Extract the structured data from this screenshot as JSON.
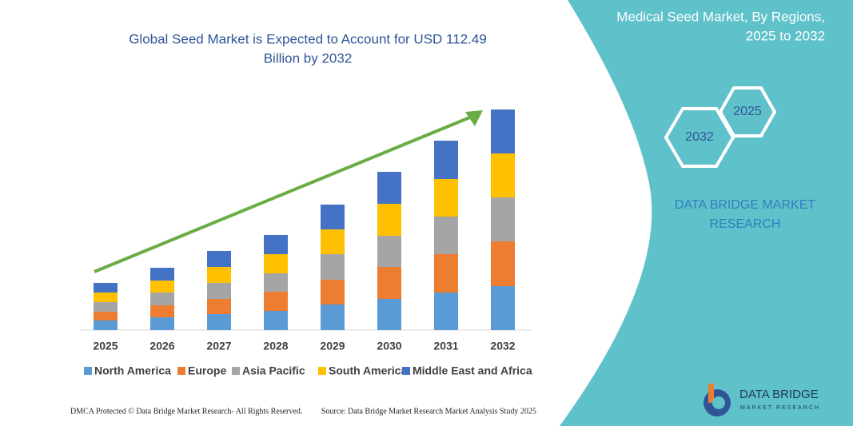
{
  "chart_data": {
    "type": "bar",
    "stacked": true,
    "title": [
      "Global Seed Market is Expected to Account for USD 112.49",
      "Billion by 2032"
    ],
    "categories": [
      "2025",
      "2026",
      "2027",
      "2028",
      "2029",
      "2030",
      "2031",
      "2032"
    ],
    "series": [
      {
        "name": "North America",
        "color": "#5b9bd5",
        "values": [
          12,
          16,
          20,
          24,
          32,
          39,
          47,
          55
        ]
      },
      {
        "name": "Europe",
        "color": "#ed7d31",
        "values": [
          11,
          15,
          19,
          24,
          31,
          40,
          48,
          56
        ]
      },
      {
        "name": "Asia Pacific",
        "color": "#a5a5a5",
        "values": [
          12,
          16,
          20,
          23,
          32,
          39,
          47,
          55
        ]
      },
      {
        "name": "South America",
        "color": "#ffc000",
        "values": [
          12,
          15,
          20,
          24,
          31,
          40,
          47,
          55
        ]
      },
      {
        "name": "Middle East and Africa",
        "color": "#4472c4",
        "values": [
          12,
          16,
          20,
          24,
          31,
          40,
          48,
          55
        ]
      }
    ],
    "ylim": [
      0,
      276
    ]
  },
  "panel": {
    "title": [
      "Medical Seed Market, By Regions,",
      "2025 to 2032"
    ],
    "hexagons": [
      "2032",
      "2025"
    ],
    "brand": [
      "DATA BRIDGE MARKET",
      "RESEARCH"
    ]
  },
  "logo": {
    "name": "DATA BRIDGE",
    "tagline": "MARKET RESEARCH"
  },
  "footer": {
    "left": "DMCA Protected © Data Bridge Market Research- All Rights Reserved.",
    "right": "Source: Data Bridge Market Research Market Analysis Study 2025"
  }
}
